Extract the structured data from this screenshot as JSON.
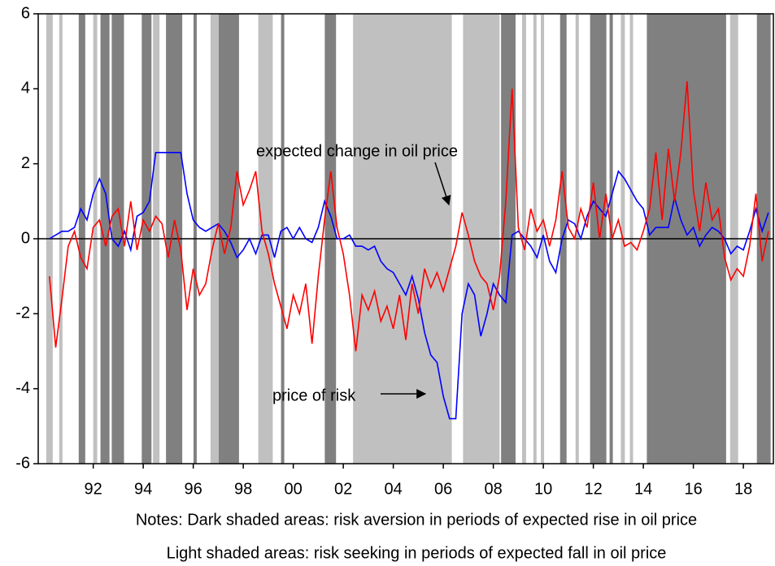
{
  "chart_data": {
    "type": "line",
    "annotations": [
      "expected change in oil price",
      "price of risk"
    ],
    "notes": [
      "Notes: Dark shaded areas: risk aversion in periods of expected rise in oil price",
      "Light shaded areas: risk seeking in periods of expected fall in oil price"
    ],
    "xlim": [
      1989.8,
      2019.2
    ],
    "ylim": [
      -6,
      6
    ],
    "yticks": [
      -6,
      -4,
      -2,
      0,
      2,
      4,
      6
    ],
    "xticks": [
      {
        "value": 1992,
        "label": "92"
      },
      {
        "value": 1994,
        "label": "94"
      },
      {
        "value": 1996,
        "label": "96"
      },
      {
        "value": 1998,
        "label": "98"
      },
      {
        "value": 2000,
        "label": "00"
      },
      {
        "value": 2002,
        "label": "02"
      },
      {
        "value": 2004,
        "label": "04"
      },
      {
        "value": 2006,
        "label": "06"
      },
      {
        "value": 2008,
        "label": "08"
      },
      {
        "value": 2010,
        "label": "10"
      },
      {
        "value": 2012,
        "label": "12"
      },
      {
        "value": 2014,
        "label": "14"
      },
      {
        "value": 2016,
        "label": "16"
      },
      {
        "value": 2018,
        "label": "18"
      }
    ],
    "dark_shading": {
      "color": "#808080",
      "ranges": [
        [
          1991.42,
          1991.68
        ],
        [
          1992.29,
          1992.65
        ],
        [
          1992.74,
          1993.23
        ],
        [
          1993.94,
          1994.33
        ],
        [
          1994.91,
          1995.56
        ],
        [
          1996.01,
          1996.14
        ],
        [
          1997.02,
          1997.83
        ],
        [
          1999.51,
          1999.64
        ],
        [
          2001.26,
          2001.71
        ],
        [
          2008.31,
          2008.89
        ],
        [
          2010.67,
          2010.93
        ],
        [
          2011.87,
          2012.52
        ],
        [
          2012.65,
          2012.78
        ],
        [
          2014.14,
          2017.31
        ],
        [
          2018.54,
          2019.09
        ]
      ]
    },
    "light_shading": {
      "color": "#c0c0c0",
      "ranges": [
        [
          1990.12,
          1990.38
        ],
        [
          1990.64,
          1990.77
        ],
        [
          1992.0,
          1992.16
        ],
        [
          1994.39,
          1994.65
        ],
        [
          1996.69,
          1997.02
        ],
        [
          1998.6,
          1999.18
        ],
        [
          2002.39,
          2006.34
        ],
        [
          2006.79,
          2008.25
        ],
        [
          2009.15,
          2009.31
        ],
        [
          2009.6,
          2009.73
        ],
        [
          2009.9,
          2010.03
        ],
        [
          2011.29,
          2011.42
        ],
        [
          2013.1,
          2013.26
        ],
        [
          2013.46,
          2013.59
        ],
        [
          2017.47,
          2017.79
        ]
      ]
    },
    "x": [
      1990.25,
      1990.5,
      1990.75,
      1991,
      1991.25,
      1991.5,
      1991.75,
      1992,
      1992.25,
      1992.5,
      1992.75,
      1993,
      1993.25,
      1993.5,
      1993.75,
      1994,
      1994.25,
      1994.5,
      1994.75,
      1995,
      1995.25,
      1995.5,
      1995.75,
      1996,
      1996.25,
      1996.5,
      1996.75,
      1997,
      1997.25,
      1997.5,
      1997.75,
      1998,
      1998.25,
      1998.5,
      1998.75,
      1999,
      1999.25,
      1999.5,
      1999.75,
      2000,
      2000.25,
      2000.5,
      2000.75,
      2001,
      2001.25,
      2001.5,
      2001.75,
      2002,
      2002.25,
      2002.5,
      2002.75,
      2003,
      2003.25,
      2003.5,
      2003.75,
      2004,
      2004.25,
      2004.5,
      2004.75,
      2005,
      2005.25,
      2005.5,
      2005.75,
      2006,
      2006.25,
      2006.5,
      2006.75,
      2007,
      2007.25,
      2007.5,
      2007.75,
      2008,
      2008.25,
      2008.5,
      2008.75,
      2009,
      2009.25,
      2009.5,
      2009.75,
      2010,
      2010.25,
      2010.5,
      2010.75,
      2011,
      2011.25,
      2011.5,
      2011.75,
      2012,
      2012.25,
      2012.5,
      2012.75,
      2013,
      2013.25,
      2013.5,
      2013.75,
      2014,
      2014.25,
      2014.5,
      2014.75,
      2015,
      2015.25,
      2015.5,
      2015.75,
      2016,
      2016.25,
      2016.5,
      2016.75,
      2017,
      2017.25,
      2017.5,
      2017.75,
      2018,
      2018.25,
      2018.5,
      2018.75,
      2019
    ],
    "series": [
      {
        "name": "price of risk",
        "color": "#0000ff",
        "values": [
          0.0,
          0.1,
          0.2,
          0.2,
          0.3,
          0.8,
          0.5,
          1.2,
          1.6,
          1.2,
          0.0,
          -0.2,
          0.2,
          -0.3,
          0.6,
          0.7,
          1.0,
          2.3,
          2.3,
          2.3,
          2.3,
          2.3,
          1.2,
          0.5,
          0.3,
          0.2,
          0.3,
          0.4,
          0.2,
          -0.1,
          -0.5,
          -0.3,
          0.0,
          -0.4,
          0.1,
          0.1,
          -0.5,
          0.2,
          0.3,
          0.0,
          0.3,
          0.0,
          -0.1,
          0.3,
          1.0,
          0.6,
          0.0,
          0.0,
          0.1,
          -0.2,
          -0.2,
          -0.3,
          -0.2,
          -0.6,
          -0.8,
          -0.9,
          -1.2,
          -1.5,
          -1.0,
          -1.6,
          -2.5,
          -3.1,
          -3.3,
          -4.2,
          -4.8,
          -4.8,
          -2.0,
          -1.2,
          -1.5,
          -2.6,
          -2.0,
          -1.2,
          -1.5,
          -1.7,
          0.1,
          0.2,
          0.0,
          -0.2,
          -0.5,
          0.1,
          -0.6,
          -0.9,
          0.0,
          0.5,
          0.4,
          0.0,
          0.6,
          1.0,
          0.8,
          0.6,
          1.2,
          1.8,
          1.6,
          1.3,
          1.0,
          0.8,
          0.1,
          0.3,
          0.3,
          0.3,
          1.1,
          0.5,
          0.1,
          0.3,
          -0.2,
          0.1,
          0.3,
          0.2,
          0.0,
          -0.4,
          -0.2,
          -0.3,
          0.2,
          0.8,
          0.2,
          0.7
        ]
      },
      {
        "name": "expected change in oil price",
        "color": "#ff0000",
        "values": [
          -1.0,
          -2.9,
          -1.6,
          -0.2,
          0.2,
          -0.5,
          -0.8,
          0.3,
          0.5,
          -0.2,
          0.6,
          0.8,
          -0.2,
          1.0,
          -0.3,
          0.5,
          0.2,
          0.6,
          0.4,
          -0.5,
          0.5,
          -0.3,
          -1.9,
          -0.8,
          -1.5,
          -1.2,
          -0.3,
          0.4,
          -0.4,
          0.3,
          1.8,
          0.9,
          1.3,
          1.8,
          0.2,
          -0.4,
          -1.2,
          -1.8,
          -2.4,
          -1.5,
          -2.0,
          -1.2,
          -2.8,
          -1.0,
          0.5,
          1.8,
          0.3,
          -0.4,
          -1.5,
          -3.0,
          -1.5,
          -1.9,
          -1.4,
          -2.2,
          -1.8,
          -2.4,
          -1.5,
          -2.7,
          -1.2,
          -2.0,
          -0.8,
          -1.3,
          -0.9,
          -1.4,
          -0.8,
          -0.2,
          0.7,
          0.1,
          -0.6,
          -1.0,
          -1.2,
          -1.9,
          -1.0,
          1.0,
          4.0,
          0.3,
          -0.3,
          0.8,
          0.2,
          0.5,
          -0.2,
          0.5,
          1.8,
          0.3,
          0.0,
          0.8,
          0.3,
          1.5,
          0.0,
          1.2,
          0.0,
          0.5,
          -0.2,
          -0.1,
          -0.3,
          0.2,
          0.8,
          2.3,
          0.5,
          2.4,
          1.0,
          2.3,
          4.2,
          1.3,
          0.2,
          1.5,
          0.5,
          0.8,
          -0.5,
          -1.1,
          -0.8,
          -1.0,
          -0.2,
          1.2,
          -0.6,
          0.2
        ]
      }
    ]
  }
}
